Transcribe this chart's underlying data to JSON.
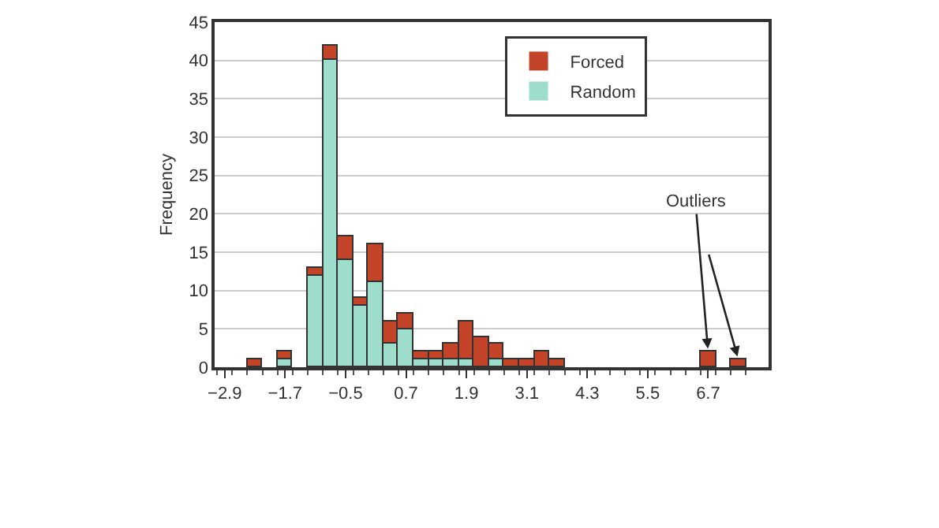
{
  "chart_data": {
    "type": "bar",
    "stacked": true,
    "ylabel": "Frequency",
    "x": [
      -2.9,
      -2.6,
      -2.3,
      -2.0,
      -1.7,
      -1.4,
      -1.1,
      -0.8,
      -0.5,
      -0.2,
      0.1,
      0.4,
      0.7,
      1.0,
      1.3,
      1.6,
      1.9,
      2.2,
      2.5,
      2.8,
      3.1,
      3.4,
      3.7,
      4.0,
      4.3,
      4.6,
      4.9,
      5.2,
      5.5,
      5.8,
      6.1,
      6.4,
      6.7,
      7.0,
      7.3
    ],
    "series": [
      {
        "name": "Random",
        "color": "#9edccb",
        "values": [
          0,
          0,
          0,
          0,
          1,
          0,
          12,
          40,
          14,
          8,
          11,
          3,
          5,
          1,
          1,
          1,
          1,
          0,
          1,
          0,
          0,
          0,
          0,
          0,
          0,
          0,
          0,
          0,
          0,
          0,
          0,
          0,
          0,
          0,
          0
        ]
      },
      {
        "name": "Forced",
        "color": "#c4442a",
        "values": [
          0,
          0,
          1,
          0,
          1,
          0,
          1,
          2,
          3,
          1,
          5,
          3,
          2,
          1,
          1,
          2,
          5,
          4,
          2,
          1,
          1,
          2,
          1,
          0,
          0,
          0,
          0,
          0,
          0,
          0,
          0,
          0,
          2,
          0,
          1
        ]
      }
    ],
    "xlim": [
      -3.1,
      7.9
    ],
    "xticks": [
      {
        "value": -2.9,
        "label": "−2.9"
      },
      {
        "value": -1.7,
        "label": "−1.7"
      },
      {
        "value": -0.5,
        "label": "−0.5"
      },
      0.7,
      1.9,
      3.1,
      4.3,
      5.5,
      6.7
    ],
    "ylim": [
      0,
      45
    ],
    "yticks": [
      0,
      5,
      10,
      15,
      20,
      25,
      30,
      35,
      40,
      45
    ],
    "grid": "y",
    "legend": "top right",
    "annotations": [
      {
        "text": "Outliers",
        "x": 6.7,
        "y": 2
      }
    ]
  }
}
